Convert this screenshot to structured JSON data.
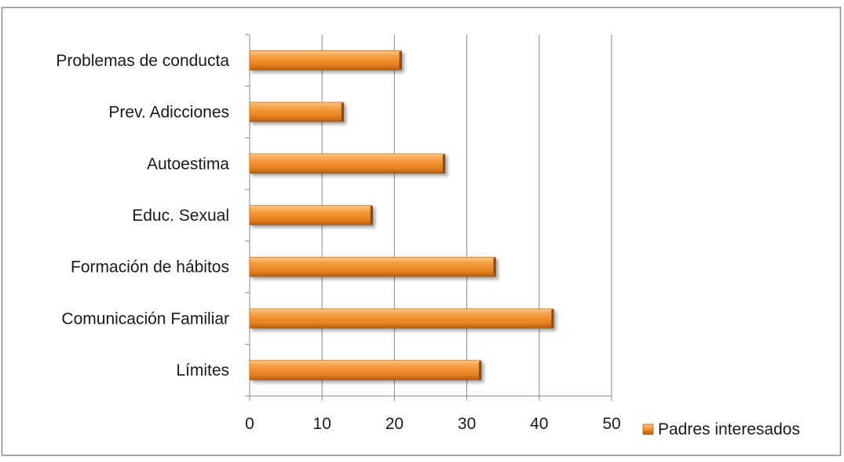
{
  "chart_data": {
    "type": "bar",
    "orientation": "horizontal",
    "title": "",
    "xlabel": "",
    "ylabel": "",
    "categories": [
      "Problemas de conducta",
      "Prev. Adicciones",
      "Autoestima",
      "Educ. Sexual",
      "Formación de hábitos",
      "Comunicación Familiar",
      "Límites"
    ],
    "series": [
      {
        "name": "Padres interesados",
        "values": [
          21,
          13,
          27,
          17,
          34,
          42,
          32
        ],
        "color": "#f0902e"
      }
    ],
    "xlim": [
      0,
      50
    ],
    "xticks": [
      "0",
      "10",
      "20",
      "30",
      "40",
      "50"
    ],
    "grid": "vertical",
    "legend": "right"
  }
}
